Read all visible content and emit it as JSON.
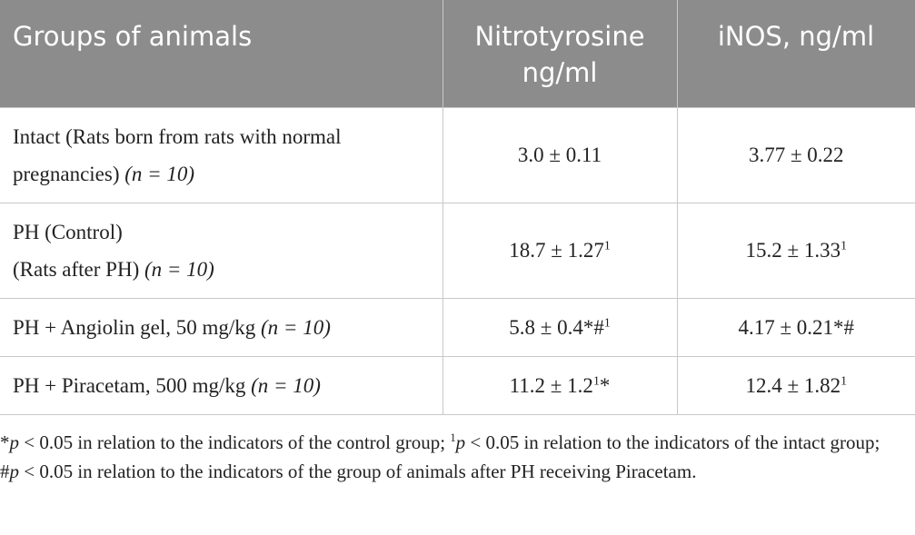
{
  "table": {
    "header": [
      "Groups of animals",
      "Nitrotyrosine ng/ml",
      "iNOS, ng/ml"
    ],
    "rows": [
      [
        [
          [
            {
              "text": "Intact (Rats born from rats with normal pregnancies) "
            },
            {
              "text": "(n = 10)",
              "format": "italic"
            }
          ]
        ],
        [
          [
            {
              "text": "3.0 ± 0.11"
            }
          ]
        ],
        [
          [
            {
              "text": "3.77 ± 0.22"
            }
          ]
        ]
      ],
      [
        [
          [
            {
              "text": "PH (Control)"
            }
          ],
          [
            {
              "text": "(Rats after PH) "
            },
            {
              "text": "(n = 10)",
              "format": "italic"
            }
          ]
        ],
        [
          [
            {
              "text": "18.7 ± 1.27"
            },
            {
              "text": "1",
              "format": "sup"
            }
          ]
        ],
        [
          [
            {
              "text": "15.2 ± 1.33"
            },
            {
              "text": "1",
              "format": "sup"
            }
          ]
        ]
      ],
      [
        [
          [
            {
              "text": "PH + Angiolin gel, 50 mg/kg "
            },
            {
              "text": "(n = 10)",
              "format": "italic"
            }
          ]
        ],
        [
          [
            {
              "text": "5.8 ± 0.4*#"
            },
            {
              "text": "1",
              "format": "sup"
            }
          ]
        ],
        [
          [
            {
              "text": "4.17 ± 0.21*#"
            }
          ]
        ]
      ],
      [
        [
          [
            {
              "text": "PH + Piracetam, 500 mg/kg "
            },
            {
              "text": "(n = 10)",
              "format": "italic"
            }
          ]
        ],
        [
          [
            {
              "text": "11.2 ± 1.2"
            },
            {
              "text": "1",
              "format": "sup"
            },
            {
              "text": "*"
            }
          ]
        ],
        [
          [
            {
              "text": "12.4 ± 1.82"
            },
            {
              "text": "1",
              "format": "sup"
            }
          ]
        ]
      ]
    ]
  },
  "footnote": [
    {
      "text": "*"
    },
    {
      "text": "p",
      "format": "italic"
    },
    {
      "text": " < 0.05 in relation to the indicators of the control group; "
    },
    {
      "text": "1",
      "format": "sup"
    },
    {
      "text": "p",
      "format": "italic"
    },
    {
      "text": " < 0.05 in relation to the indicators of the intact group; #"
    },
    {
      "text": "p",
      "format": "italic"
    },
    {
      "text": " < 0.05 in relation to the indicators of the group of animals after PH receiving Piracetam."
    }
  ]
}
